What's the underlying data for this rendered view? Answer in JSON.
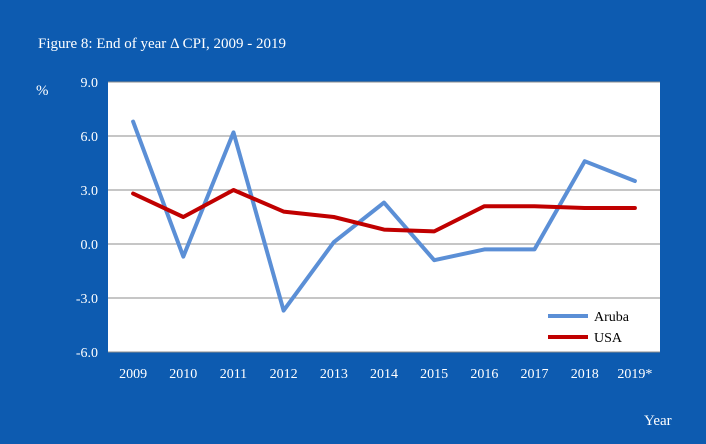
{
  "chart_data": {
    "type": "line",
    "title": "Figure 8: End of year Δ CPI, 2009 - 2019",
    "ylabel": "%",
    "xlabel": "Year",
    "categories": [
      "2009",
      "2010",
      "2011",
      "2012",
      "2013",
      "2014",
      "2015",
      "2016",
      "2017",
      "2018",
      "2019*"
    ],
    "y_ticks": [
      "9.0",
      "6.0",
      "3.0",
      "0.0",
      "-3.0",
      "-6.0"
    ],
    "ylim": [
      -6,
      9
    ],
    "grid": true,
    "legend_position": "bottom-right",
    "series": [
      {
        "name": "Aruba",
        "color": "#5b8fd6",
        "values": [
          6.8,
          -0.7,
          6.2,
          -3.7,
          0.1,
          2.3,
          -0.9,
          -0.3,
          -0.3,
          4.6,
          3.5
        ]
      },
      {
        "name": "USA",
        "color": "#c00000",
        "values": [
          2.8,
          1.5,
          3.0,
          1.8,
          1.5,
          0.8,
          0.7,
          2.1,
          2.1,
          2.0,
          2.0
        ]
      }
    ]
  }
}
